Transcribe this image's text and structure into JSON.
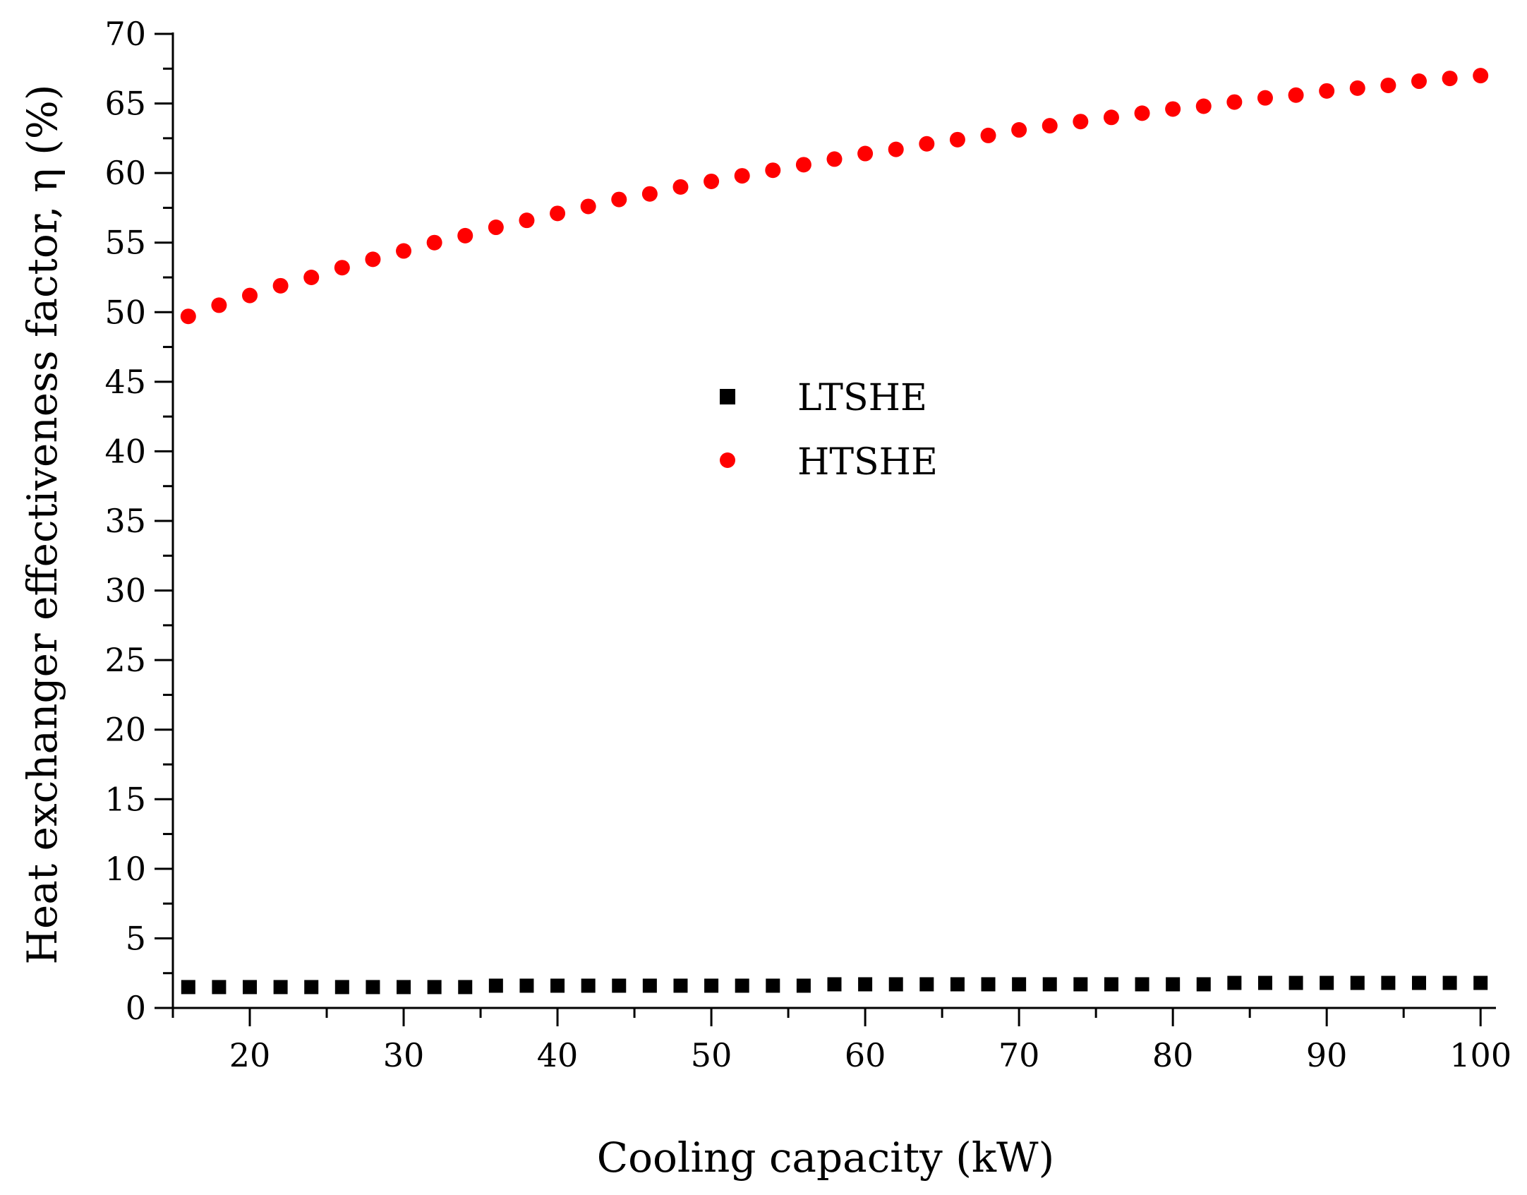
{
  "chart_data": {
    "type": "scatter",
    "xlabel": "Cooling capacity (kW)",
    "ylabel": "Heat exchanger effectiveness factor, η (%)",
    "xlim": [
      15,
      101
    ],
    "ylim": [
      0,
      70
    ],
    "x_ticks": [
      20,
      30,
      40,
      50,
      60,
      70,
      80,
      90,
      100
    ],
    "y_ticks": [
      0,
      5,
      10,
      15,
      20,
      25,
      30,
      35,
      40,
      45,
      50,
      55,
      60,
      65,
      70
    ],
    "x_tick_labels": [
      "20",
      "30",
      "40",
      "50",
      "60",
      "70",
      "80",
      "90",
      "100"
    ],
    "y_tick_labels": [
      "0",
      "5",
      "10",
      "15",
      "20",
      "25",
      "30",
      "35",
      "40",
      "45",
      "50",
      "55",
      "60",
      "65",
      "70"
    ],
    "legend_position": "center",
    "x": [
      16,
      18,
      20,
      22,
      24,
      26,
      28,
      30,
      32,
      34,
      36,
      38,
      40,
      42,
      44,
      46,
      48,
      50,
      52,
      54,
      56,
      58,
      60,
      62,
      64,
      66,
      68,
      70,
      72,
      74,
      76,
      78,
      80,
      82,
      84,
      86,
      88,
      90,
      92,
      94,
      96,
      98,
      100
    ],
    "series": [
      {
        "name": "LTSHE",
        "marker": "square",
        "color": "#000000",
        "values": [
          1.5,
          1.5,
          1.5,
          1.5,
          1.5,
          1.5,
          1.5,
          1.5,
          1.5,
          1.5,
          1.6,
          1.6,
          1.6,
          1.6,
          1.6,
          1.6,
          1.6,
          1.6,
          1.6,
          1.6,
          1.6,
          1.7,
          1.7,
          1.7,
          1.7,
          1.7,
          1.7,
          1.7,
          1.7,
          1.7,
          1.7,
          1.7,
          1.7,
          1.7,
          1.8,
          1.8,
          1.8,
          1.8,
          1.8,
          1.8,
          1.8,
          1.8,
          1.8
        ]
      },
      {
        "name": "HTSHE",
        "marker": "circle",
        "color": "#ff0000",
        "values": [
          49.7,
          50.5,
          51.2,
          51.9,
          52.5,
          53.2,
          53.8,
          54.4,
          55.0,
          55.5,
          56.1,
          56.6,
          57.1,
          57.6,
          58.1,
          58.5,
          59.0,
          59.4,
          59.8,
          60.2,
          60.6,
          61.0,
          61.4,
          61.7,
          62.1,
          62.4,
          62.7,
          63.1,
          63.4,
          63.7,
          64.0,
          64.3,
          64.6,
          64.8,
          65.1,
          65.4,
          65.6,
          65.9,
          66.1,
          66.3,
          66.6,
          66.8,
          67.0
        ]
      }
    ]
  }
}
